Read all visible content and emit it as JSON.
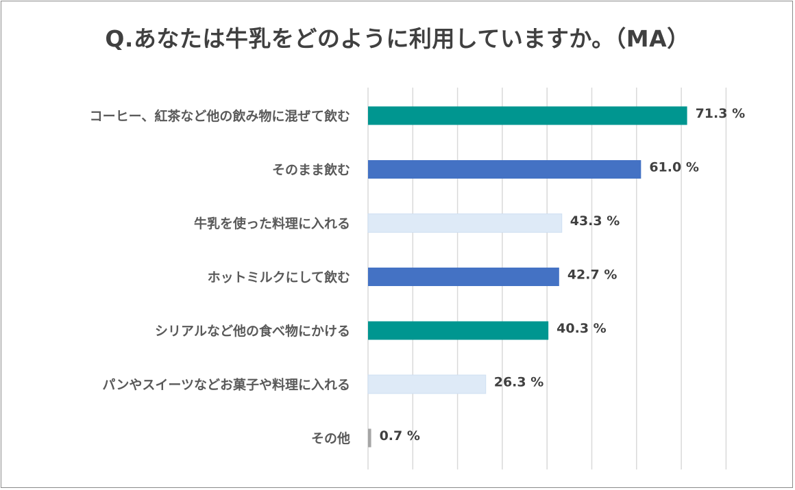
{
  "title": "Q.あなたは牛乳をどのように利用していますか。（MA）",
  "colors": {
    "teal": "#009690",
    "blue": "#4472c4",
    "light": "#deeaf7",
    "gray": "#a6a6a6",
    "grid": "#d9d9d9"
  },
  "chart_data": {
    "type": "bar",
    "orientation": "horizontal",
    "title": "Q.あなたは牛乳をどのように利用していますか。（MA）",
    "xlim": [
      0,
      80
    ],
    "grid": true,
    "legend": "none",
    "categories": [
      "コーヒー、紅茶など他の飲み物に混ぜて飲む",
      "そのまま飲む",
      "牛乳を使った料理に入れる",
      "ホットミルクにして飲む",
      "シリアルなど他の食べ物にかける",
      "パンやスイーツなどお菓子や料理に入れる",
      "その他"
    ],
    "values": [
      71.3,
      61.0,
      43.3,
      42.7,
      40.3,
      26.3,
      0.7
    ],
    "data_labels": [
      "71.3 %",
      "61.0 %",
      "43.3 %",
      "42.7 %",
      "40.3 %",
      "26.3 %",
      "0.7 %"
    ],
    "bar_colors": [
      "teal",
      "blue",
      "light",
      "blue",
      "teal",
      "light",
      "gray"
    ]
  }
}
